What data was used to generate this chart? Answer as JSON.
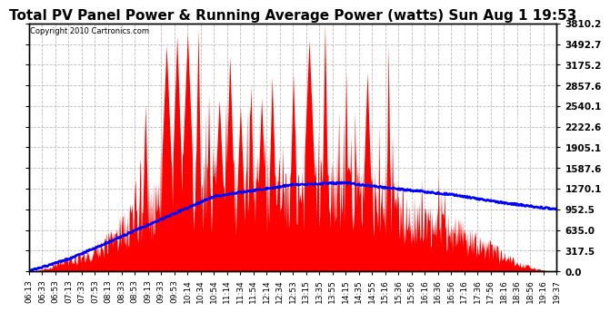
{
  "title": "Total PV Panel Power & Running Average Power (watts) Sun Aug 1 19:53",
  "copyright": "Copyright 2010 Cartronics.com",
  "ymax": 3810.2,
  "ytick_values": [
    0.0,
    317.5,
    635.0,
    952.5,
    1270.1,
    1587.6,
    1905.1,
    2222.6,
    2540.1,
    2857.6,
    3175.2,
    3492.7,
    3810.2
  ],
  "xtick_labels": [
    "06:13",
    "06:33",
    "06:53",
    "07:13",
    "07:33",
    "07:53",
    "08:13",
    "08:33",
    "08:53",
    "09:13",
    "09:33",
    "09:53",
    "10:14",
    "10:34",
    "10:54",
    "11:14",
    "11:34",
    "11:54",
    "12:14",
    "12:34",
    "12:53",
    "13:15",
    "13:35",
    "13:55",
    "14:15",
    "14:35",
    "14:55",
    "15:16",
    "15:36",
    "15:56",
    "16:16",
    "16:36",
    "16:56",
    "17:16",
    "17:36",
    "17:56",
    "18:16",
    "18:36",
    "18:56",
    "19:16",
    "19:37"
  ],
  "bg_color": "#ffffff",
  "plot_bg_color": "#ffffff",
  "bar_color": "#ff0000",
  "avg_color": "#0000ff",
  "title_fontsize": 11,
  "grid_color": "#aaaaaa"
}
